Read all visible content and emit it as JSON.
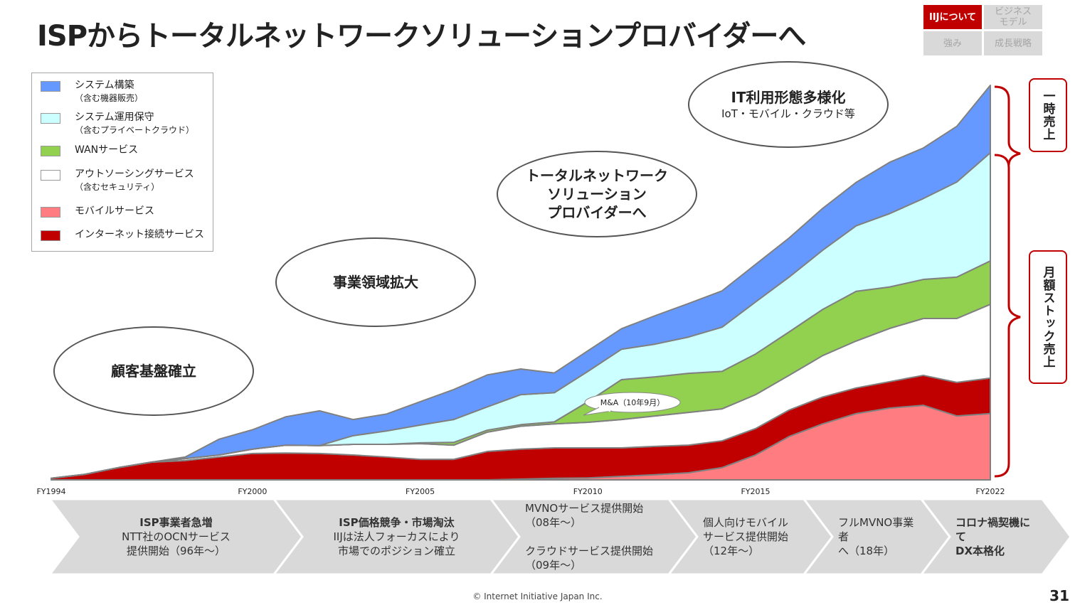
{
  "title": "ISPからトータルネットワークソリューションプロバイダーへ",
  "nav": {
    "items": [
      {
        "label": "IIJについて",
        "active": true
      },
      {
        "label": "ビジネス\nモデル",
        "active": false
      },
      {
        "label": "強み",
        "active": false
      },
      {
        "label": "成長戦略",
        "active": false
      }
    ]
  },
  "legend": [
    {
      "label": "システム構築",
      "sub": "（含む機器販売）",
      "color": "#6699ff"
    },
    {
      "label": "システム運用保守",
      "sub": "（含むプライベートクラウド）",
      "color": "#ccffff"
    },
    {
      "label": "WANサービス",
      "sub": "",
      "color": "#92d050"
    },
    {
      "label": "アウトソーシングサービス",
      "sub": "（含むセキュリティ）",
      "color": "#ffffff"
    },
    {
      "label": "モバイルサービス",
      "sub": "",
      "color": "#ff7c80"
    },
    {
      "label": "インターネット接続サービス",
      "sub": "",
      "color": "#c00000"
    }
  ],
  "ellipses": {
    "e1": "顧客基盤確立",
    "e2": "事業領域拡大",
    "e3": "トータルネットワーク\nソリューション\nプロバイダーへ",
    "e4_title": "IT利用形態多様化",
    "e4_sub": "IoT・モバイル・クラウド等"
  },
  "callout": "M&A（10年9月）",
  "brackets": {
    "one_time": "一時売上",
    "recurring": "月額ストック売上"
  },
  "chart_data": {
    "type": "area",
    "stacked": true,
    "title": "",
    "xlabel": "",
    "ylabel": "",
    "y_units": "relative (FY2022 total = 100, no axis printed)",
    "x": [
      1994,
      1995,
      1996,
      1997,
      1998,
      1999,
      2000,
      2001,
      2002,
      2003,
      2004,
      2005,
      2006,
      2007,
      2008,
      2009,
      2010,
      2011,
      2012,
      2013,
      2014,
      2015,
      2016,
      2017,
      2018,
      2019,
      2020,
      2021,
      2022
    ],
    "x_tick_labels": [
      "FY1994",
      "FY2000",
      "FY2005",
      "FY2010",
      "FY2015",
      "FY2022"
    ],
    "x_tick_values": [
      1994,
      2000,
      2005,
      2010,
      2015,
      2022
    ],
    "ylim": [
      0,
      100
    ],
    "grid": false,
    "legend_position": "top-left",
    "series": [
      {
        "name": "モバイルサービス",
        "color": "#ff7c80",
        "values": [
          0,
          0,
          0,
          0,
          0,
          0,
          0,
          0,
          0,
          0,
          0,
          0,
          0,
          0,
          0.2,
          0.4,
          0.5,
          0.9,
          1.3,
          1.8,
          3.1,
          6.3,
          11.0,
          14.2,
          16.8,
          18.2,
          18.9,
          16.2,
          16.8
        ]
      },
      {
        "name": "インターネット接続サービス",
        "color": "#c00000",
        "values": [
          0.4,
          1.4,
          3.1,
          4.5,
          4.9,
          5.8,
          6.7,
          6.8,
          6.7,
          6.3,
          5.8,
          5.2,
          5.2,
          7.2,
          7.6,
          7.7,
          7.6,
          7.2,
          7.2,
          7.0,
          6.8,
          6.7,
          6.7,
          6.8,
          6.5,
          6.7,
          7.6,
          8.5,
          9.0
        ]
      },
      {
        "name": "アウトソーシングサービス",
        "color": "#ffffff",
        "values": [
          0,
          0,
          0,
          0,
          0.5,
          0.5,
          1.1,
          2.0,
          2.0,
          2.7,
          3.2,
          4.0,
          3.6,
          4.9,
          5.8,
          6.1,
          6.5,
          7.2,
          7.7,
          8.3,
          8.1,
          8.6,
          8.8,
          10.5,
          11.9,
          13.5,
          14.4,
          16.2,
          18.7
        ]
      },
      {
        "name": "WANサービス",
        "color": "#92d050",
        "values": [
          0,
          0,
          0,
          0,
          0,
          0,
          0,
          0,
          0,
          0,
          0,
          0.2,
          0.7,
          0.5,
          0.4,
          0.5,
          5.2,
          10.1,
          9.9,
          9.9,
          9.5,
          10.3,
          11.0,
          11.7,
          12.6,
          10.5,
          9.9,
          10.5,
          11.0
        ]
      },
      {
        "name": "システム運用保守",
        "color": "#ccffff",
        "values": [
          0,
          0,
          0,
          0,
          0,
          0,
          0,
          0,
          0,
          2.2,
          3.4,
          4.5,
          5.8,
          5.9,
          7.6,
          7.4,
          7.7,
          7.7,
          8.3,
          9.2,
          11.2,
          13.2,
          13.9,
          15.0,
          16.6,
          18.6,
          20.5,
          24.1,
          27.4
        ]
      },
      {
        "name": "システム構築",
        "color": "#6699ff",
        "values": [
          0,
          0,
          0,
          0,
          0.4,
          4.0,
          4.9,
          7.2,
          8.8,
          4.1,
          4.3,
          5.9,
          7.6,
          8.1,
          6.5,
          5.0,
          5.2,
          5.2,
          7.2,
          8.5,
          9.2,
          9.5,
          9.9,
          10.6,
          11.0,
          13.0,
          12.8,
          14.1,
          17.1
        ]
      }
    ]
  },
  "timeline": [
    {
      "bold": "ISP事業者急増",
      "text": "NTT社のOCNサービス\n提供開始（96年～）"
    },
    {
      "bold": "ISP価格競争・市場淘汰",
      "text": "IIJは法人フォーカスにより\n市場でのポジション確立"
    },
    {
      "bold": "",
      "text": "MVNOサービス提供開始\n（08年～）\n\nクラウドサービス提供開始\n（09年～）"
    },
    {
      "bold": "",
      "text": "個人向けモバイル\nサービス提供開始\n（12年～）"
    },
    {
      "bold": "",
      "text": "フルMVNO事業者\nへ（18年）"
    },
    {
      "bold": "コロナ禍契機にて\nDX本格化",
      "text": ""
    }
  ],
  "footer": "© Internet Initiative Japan Inc.",
  "page_number": "31"
}
